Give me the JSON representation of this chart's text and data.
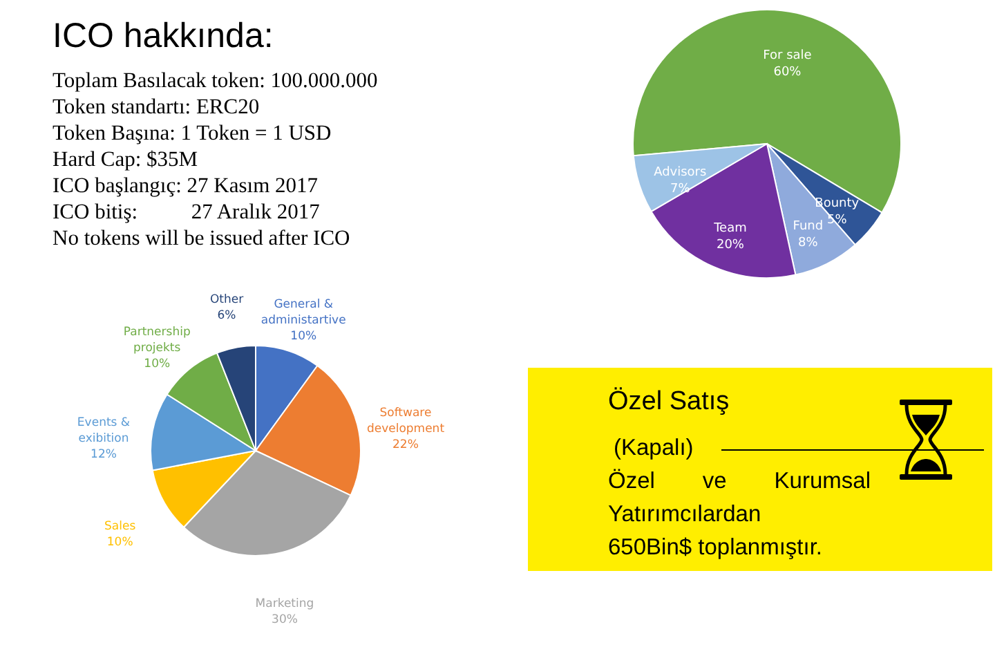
{
  "chart_data": [
    {
      "type": "other",
      "title": "ICO hakkında:",
      "annotations": [
        "Toplam Basılacak token: 100.000.000",
        "Token standartı: ERC20",
        "Token Başına: 1 Token = 1 USD",
        "Hard Cap: $35M",
        "ICO başlangıç: 27 Kasım 2017",
        "ICO bitiş:          27 Aralık 2017",
        "No tokens will be issued after ICO"
      ]
    },
    {
      "type": "pie",
      "categories": [
        "For sale",
        "Bounty",
        "Fund",
        "Team",
        "Advisors"
      ],
      "values": [
        60,
        5,
        8,
        20,
        7
      ],
      "value_labels": [
        "60%",
        "5%",
        "8%",
        "20%",
        "7%"
      ],
      "colors": [
        "#70ad47",
        "#2f5597",
        "#8faadc",
        "#7030a0",
        "#9dc3e6"
      ],
      "legend": false
    },
    {
      "type": "pie",
      "categories": [
        "General & administartive",
        "Software development",
        "Marketing",
        "Sales",
        "Events & exibition",
        "Partnership projekts",
        "Other"
      ],
      "values": [
        10,
        22,
        30,
        10,
        12,
        10,
        6
      ],
      "value_labels": [
        "10%",
        "22%",
        "30%",
        "10%",
        "12%",
        "10%",
        "6%"
      ],
      "colors": [
        "#4472c4",
        "#ed7d31",
        "#a5a5a5",
        "#ffc000",
        "#5b9bd5",
        "#70ad47",
        "#264478"
      ],
      "legend": false
    },
    {
      "type": "other",
      "title": "Özel Satış",
      "annotations": [
        "(Kapalı)",
        "Özel ve Kurumsal Yatırımcılardan",
        "650Bin$ toplanmıştır."
      ]
    }
  ]
}
